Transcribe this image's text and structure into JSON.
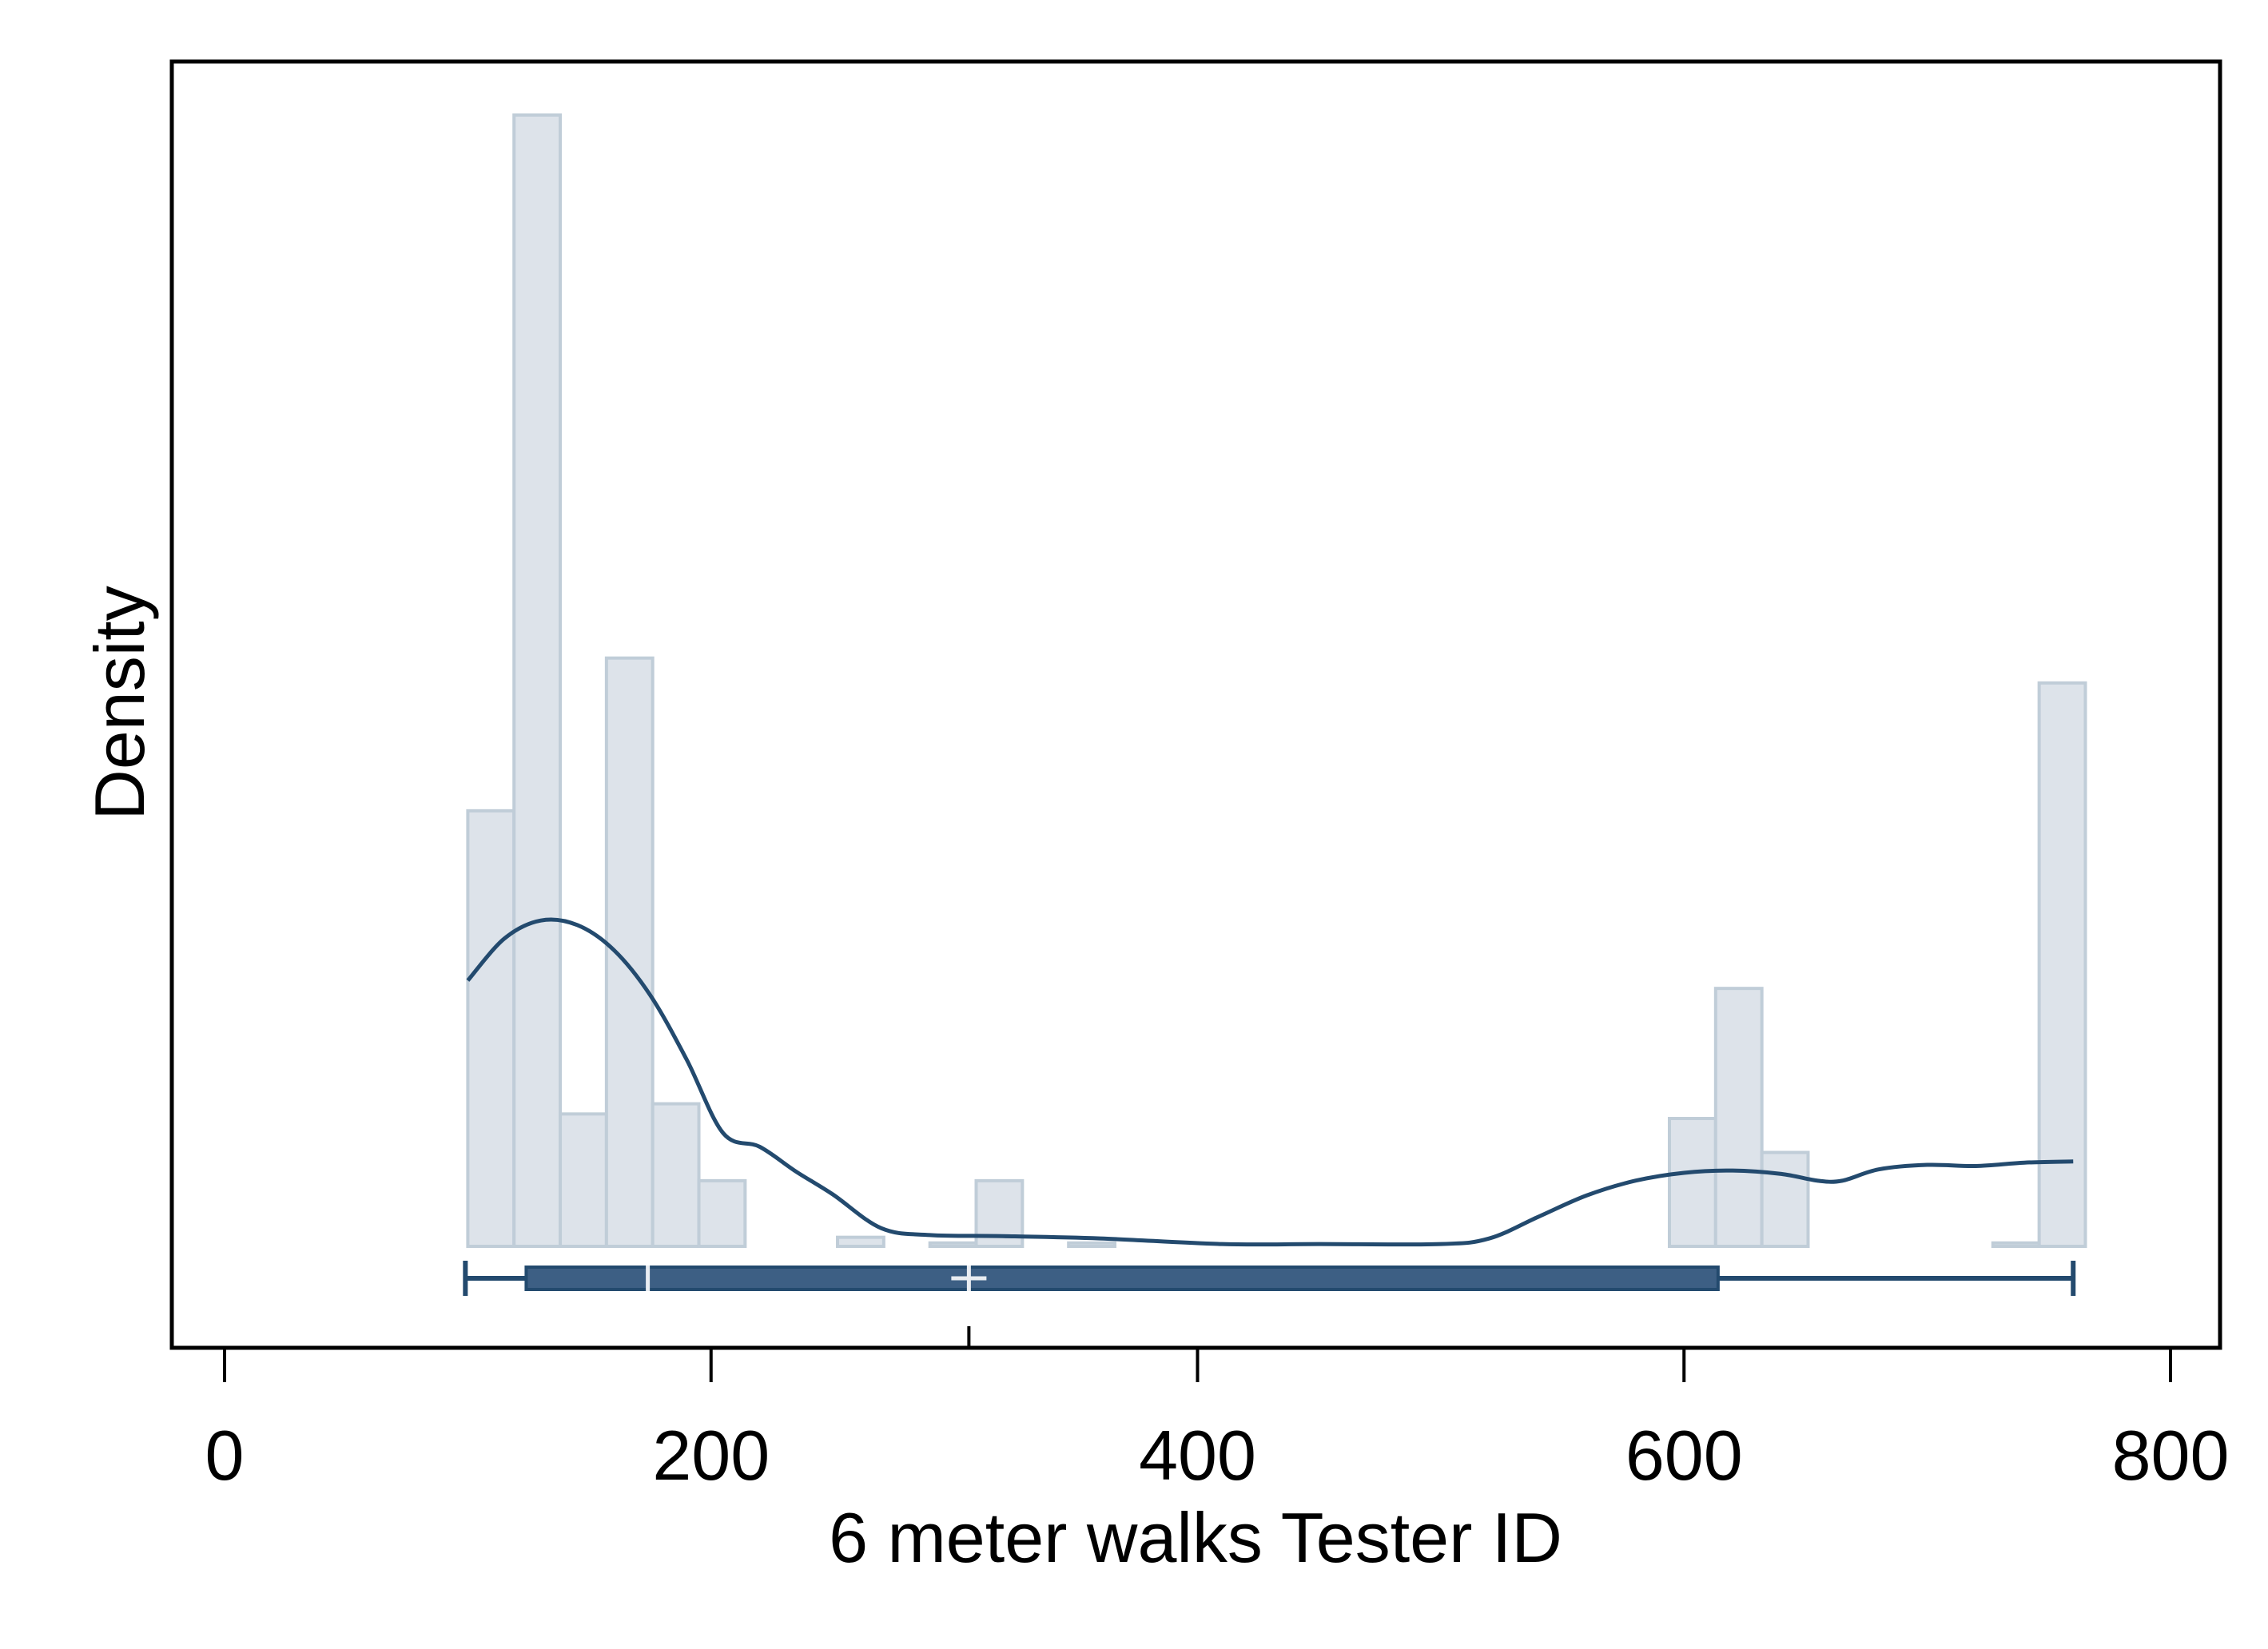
{
  "chart_data": {
    "type": "histogram",
    "xlabel": "6 meter walks Tester ID",
    "ylabel": "Density",
    "xlim": [
      -10,
      820
    ],
    "xticks": [
      0,
      200,
      400,
      600,
      800
    ],
    "xtick_labels": [
      "0",
      "200",
      "400",
      "600",
      "800"
    ],
    "yticks_shown": false,
    "grid": false,
    "legend": "none",
    "histogram": {
      "bin_width": 19,
      "bins": [
        {
          "x0": 100,
          "x1": 119,
          "density": 0.00385
        },
        {
          "x0": 119,
          "x1": 138,
          "density": 0.01,
          "label": ""
        },
        {
          "x0": 138,
          "x1": 157,
          "density": 0.00117
        },
        {
          "x0": 157,
          "x1": 176,
          "density": 0.0052
        },
        {
          "x0": 176,
          "x1": 195,
          "density": 0.00126
        },
        {
          "x0": 195,
          "x1": 214,
          "density": 0.00058
        },
        {
          "x0": 252,
          "x1": 271,
          "density": 8e-05
        },
        {
          "x0": 290,
          "x1": 309,
          "density": 3e-05
        },
        {
          "x0": 309,
          "x1": 328,
          "density": 0.00058
        },
        {
          "x0": 347,
          "x1": 366,
          "density": 3e-05
        },
        {
          "x0": 594,
          "x1": 613,
          "density": 0.00113
        },
        {
          "x0": 613,
          "x1": 632,
          "density": 0.00228
        },
        {
          "x0": 632,
          "x1": 651,
          "density": 0.00083
        },
        {
          "x0": 727,
          "x1": 746,
          "density": 3e-05
        },
        {
          "x0": 746,
          "x1": 765,
          "density": 0.00498
        }
      ]
    },
    "density_curve": {
      "x": [
        100,
        115,
        130,
        145,
        160,
        175,
        190,
        205,
        220,
        235,
        250,
        270,
        290,
        320,
        360,
        410,
        450,
        500,
        520,
        540,
        560,
        580,
        600,
        620,
        640,
        655,
        665,
        680,
        700,
        720,
        740,
        760
      ],
      "y": [
        0.00235,
        0.00272,
        0.00288,
        0.00284,
        0.00262,
        0.00222,
        0.00165,
        0.001,
        0.00088,
        0.00066,
        0.00046,
        0.00016,
        0.0001,
        9e-05,
        7e-05,
        2e-05,
        2e-05,
        2e-05,
        7e-05,
        0.00026,
        0.00045,
        0.00058,
        0.00065,
        0.00067,
        0.00064,
        0.00058,
        0.00058,
        0.00068,
        0.00072,
        0.00071,
        0.00074,
        0.00075
      ]
    },
    "boxplot": {
      "min": 99,
      "q1": 124,
      "median": 174,
      "mean": 306,
      "q3": 614,
      "max": 760
    },
    "ylim": [
      -0.0004,
      0.0105
    ],
    "colors": {
      "bar_fill": "#dde3ea",
      "bar_stroke": "#c0cdd8",
      "curve": "#234a6e",
      "box_fill": "#3d5f84",
      "box_stroke": "#234a6e",
      "markers": "#e9edf2",
      "axis": "#000000"
    }
  }
}
